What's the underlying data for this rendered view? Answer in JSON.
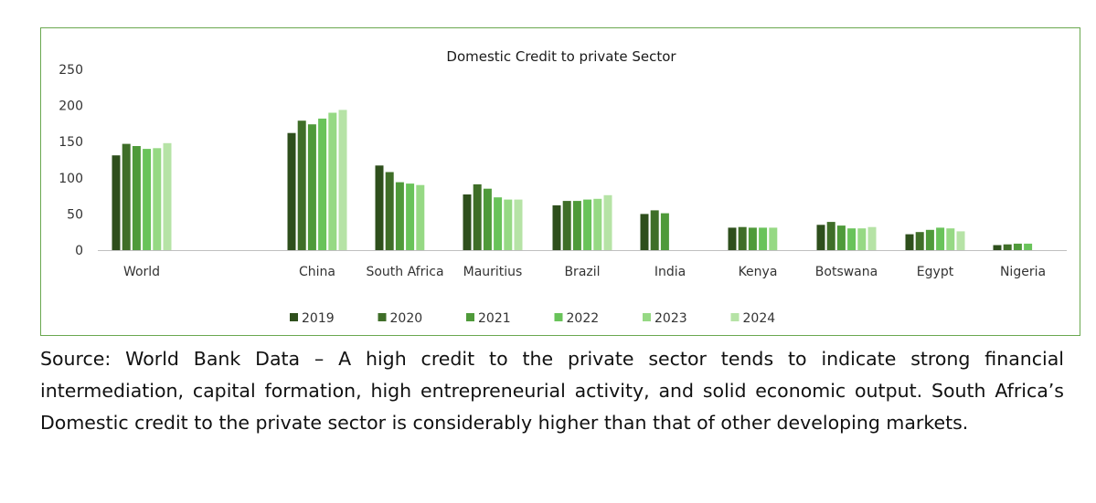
{
  "chart_data": {
    "type": "bar",
    "title": "Domestic Credit to private Sector",
    "xlabel": "",
    "ylabel": "",
    "ylim": [
      0,
      250
    ],
    "yticks": [
      0,
      50,
      100,
      150,
      200,
      250
    ],
    "grid": false,
    "legend_position": "bottom",
    "categories": [
      "World",
      "China",
      "South Africa",
      "Mauritius",
      "Brazil",
      "India",
      "Kenya",
      "Botswana",
      "Egypt",
      "Nigeria"
    ],
    "series": [
      {
        "name": "2019",
        "color": "#2e4f1c",
        "values": [
          131,
          162,
          117,
          77,
          62,
          50,
          31,
          35,
          22,
          7
        ]
      },
      {
        "name": "2020",
        "color": "#3f6e28",
        "values": [
          147,
          179,
          108,
          91,
          68,
          55,
          32,
          39,
          25,
          8
        ]
      },
      {
        "name": "2021",
        "color": "#4f9a3a",
        "values": [
          144,
          174,
          94,
          85,
          68,
          51,
          31,
          34,
          28,
          9
        ]
      },
      {
        "name": "2022",
        "color": "#69c35a",
        "values": [
          140,
          182,
          92,
          73,
          70,
          null,
          31,
          30,
          31,
          9
        ]
      },
      {
        "name": "2023",
        "color": "#96d984",
        "values": [
          141,
          190,
          90,
          70,
          71,
          null,
          31,
          30,
          30,
          null
        ]
      },
      {
        "name": "2024",
        "color": "#b6e3a6",
        "values": [
          148,
          194,
          null,
          70,
          76,
          null,
          null,
          32,
          26,
          null
        ]
      }
    ]
  },
  "caption": {
    "text": "Source: World Bank Data – A high credit to the private sector tends to indicate strong financial intermediation, capital formation, high entrepreneurial activity, and solid economic output. South Africa’s Domestic credit to the private sector is considerably higher than that of other developing markets."
  },
  "colors": {
    "frame_border": "#6aa84f",
    "axis": "#bfbfbf"
  }
}
